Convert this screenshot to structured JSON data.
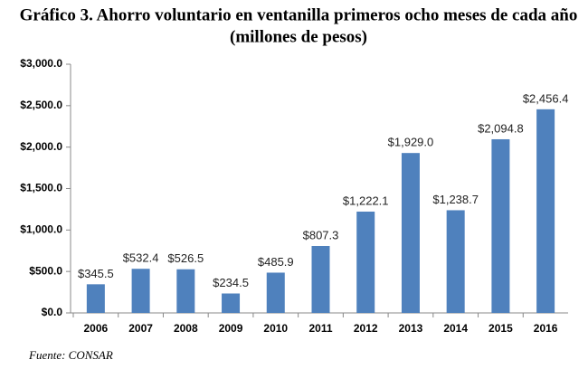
{
  "chart_data": {
    "type": "bar",
    "title": "Gráfico 3. Ahorro voluntario en ventanilla primeros ocho meses de cada año",
    "subtitle": "(millones de pesos)",
    "source": "Fuente: CONSAR",
    "categories": [
      "2006",
      "2007",
      "2008",
      "2009",
      "2010",
      "2011",
      "2012",
      "2013",
      "2014",
      "2015",
      "2016"
    ],
    "values": [
      345.5,
      532.4,
      526.5,
      234.5,
      485.9,
      807.3,
      1222.1,
      1929.0,
      1238.7,
      2094.8,
      2456.4
    ],
    "value_labels": [
      "$345.5",
      "$532.4",
      "$526.5",
      "$234.5",
      "$485.9",
      "$807.3",
      "$1,222.1",
      "$1,929.0",
      "$1,238.7",
      "$2,094.8",
      "$2,456.4"
    ],
    "color": "#4f81bd",
    "ylim": [
      0,
      3000
    ],
    "yticks": [
      {
        "value": 0,
        "label": "$0.0"
      },
      {
        "value": 500,
        "label": "$500.0"
      },
      {
        "value": 1000,
        "label": "$1,000.0"
      },
      {
        "value": 1500,
        "label": "$1,500.0"
      },
      {
        "value": 2000,
        "label": "$2,000.0"
      },
      {
        "value": 2500,
        "label": "$2,500.0"
      },
      {
        "value": 3000,
        "label": "$3,000.0"
      }
    ],
    "grid": false
  }
}
